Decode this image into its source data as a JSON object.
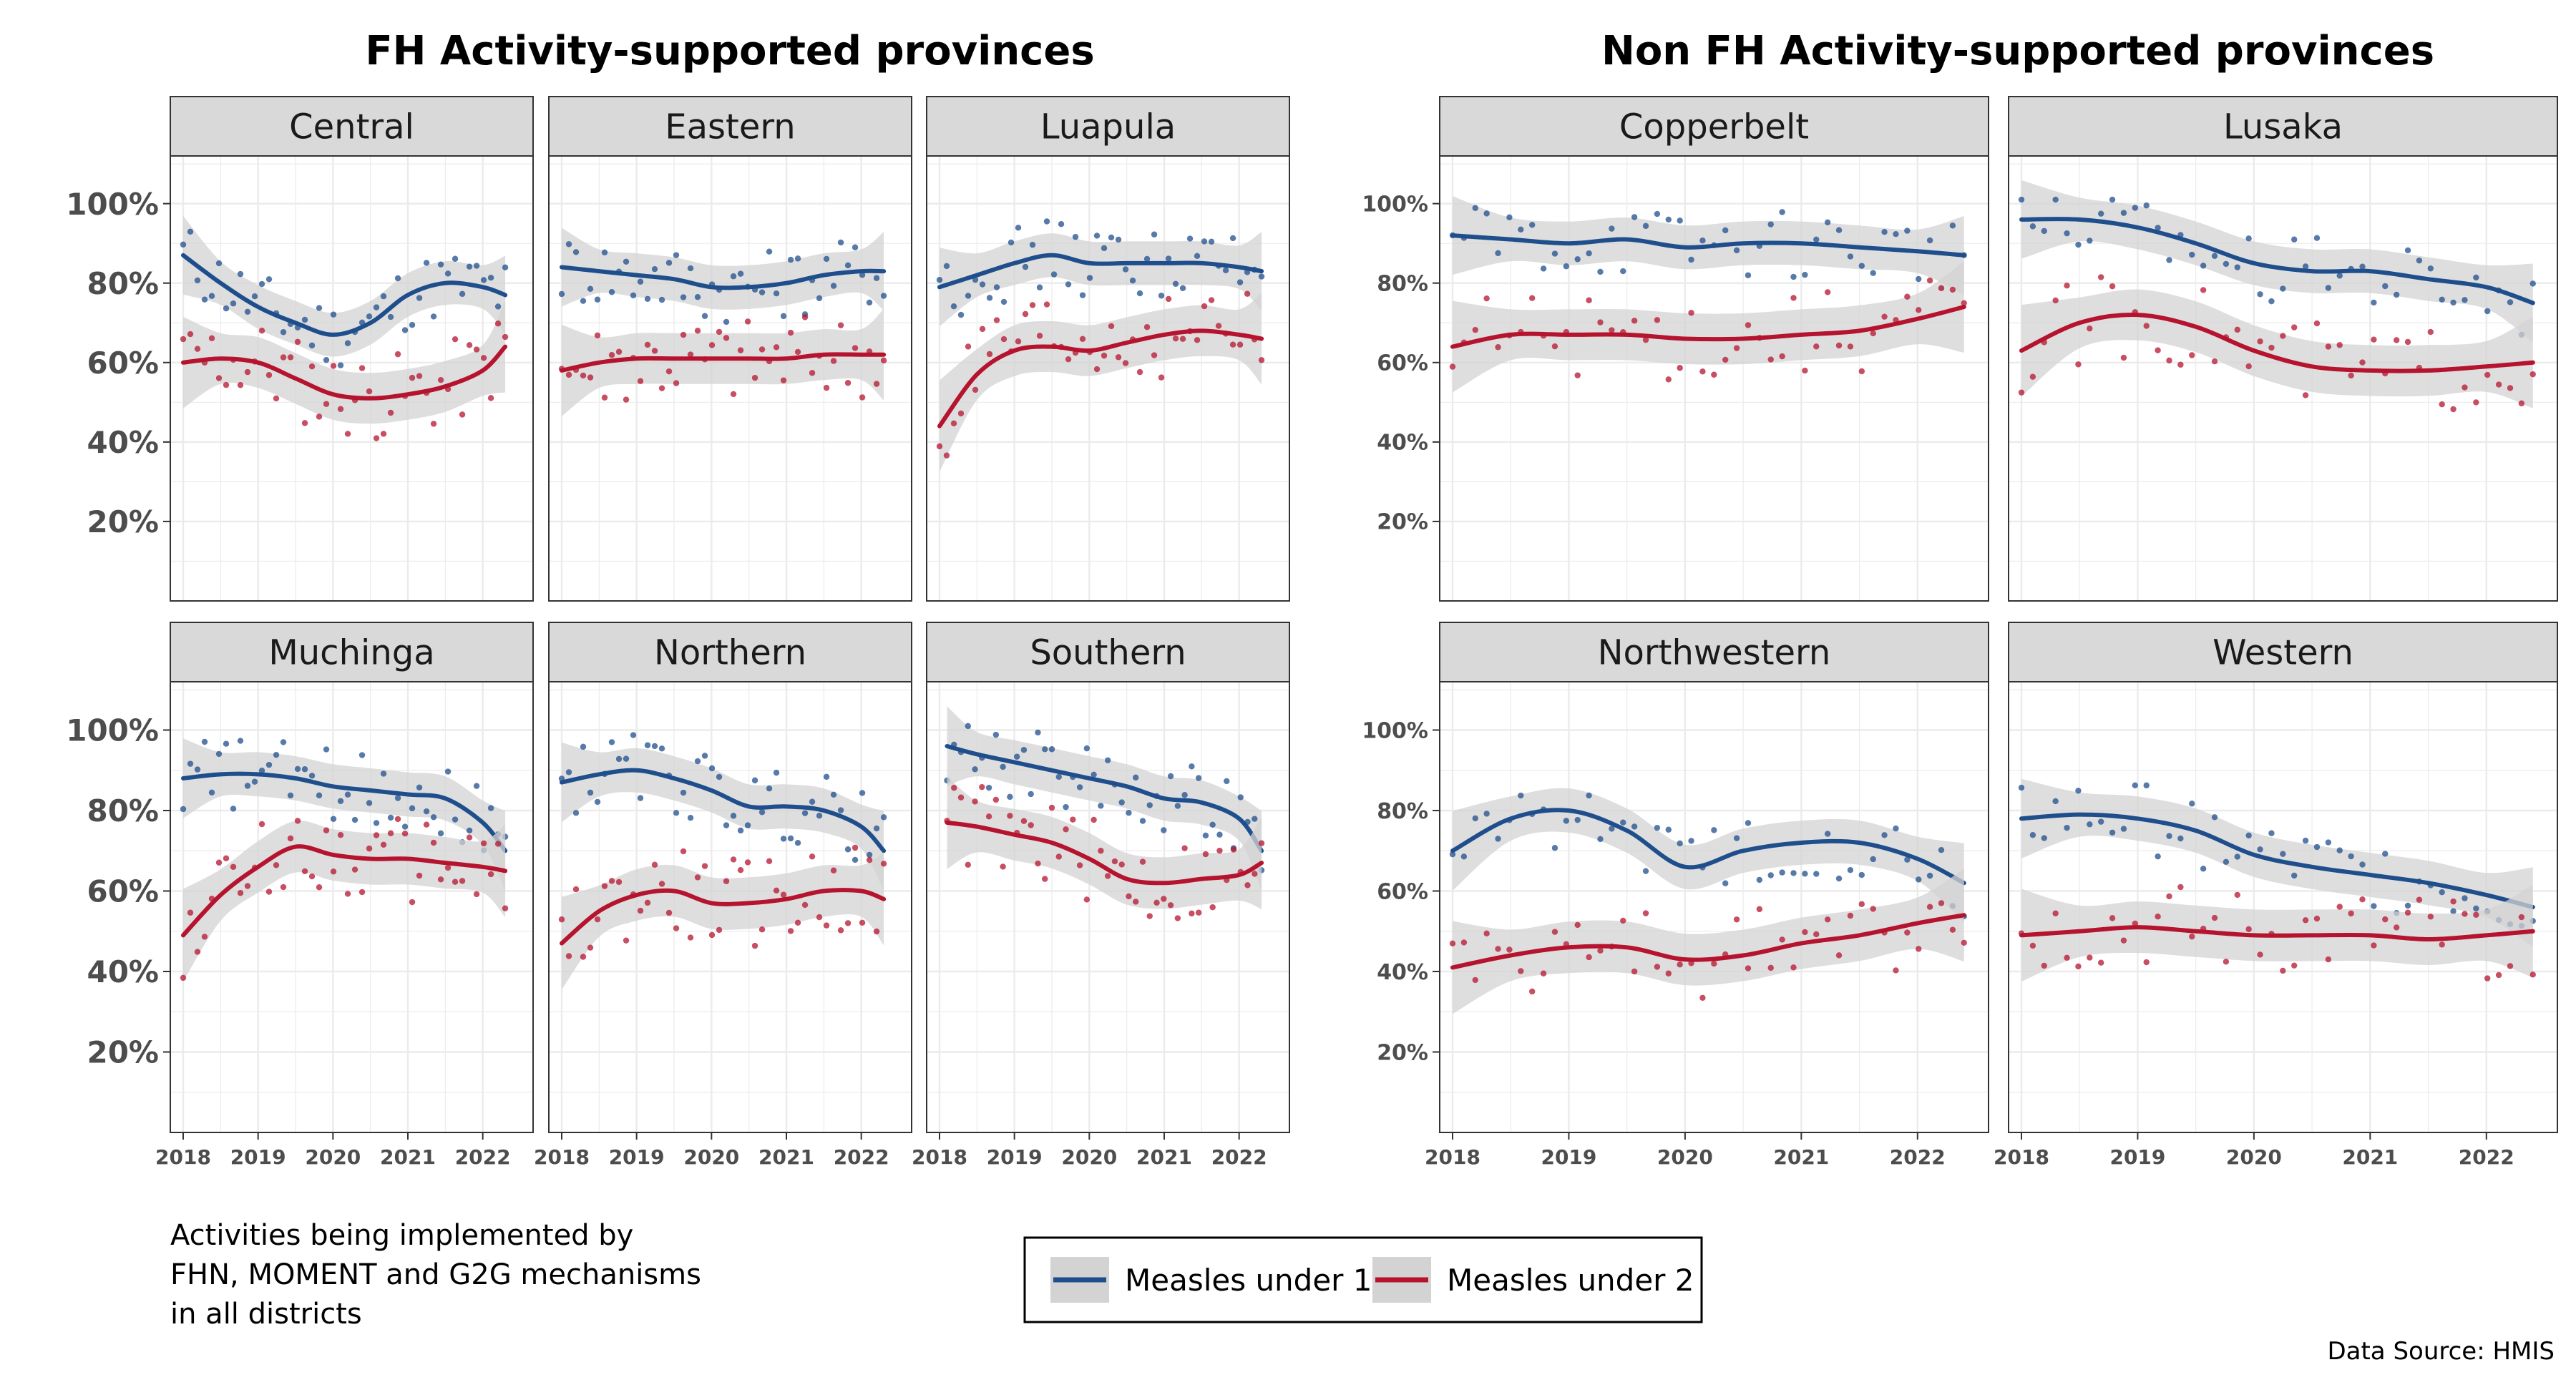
{
  "group_titles": [
    "FH Activity-supported provinces",
    "Non FH Activity-supported provinces"
  ],
  "note_lines": [
    "Activities being implemented by",
    "FHN, MOMENT and G2G mechanisms",
    "in all districts"
  ],
  "source": "Data Source: HMIS",
  "legend": {
    "items": [
      {
        "label": "Measles under 1",
        "color": "#1f4e8c"
      },
      {
        "label": "Measles under 2",
        "color": "#b5132e"
      }
    ]
  },
  "chart_data": {
    "type": "line",
    "facet": true,
    "series_names": [
      "Measles under 1",
      "Measles under 2"
    ],
    "colors": {
      "Measles under 1": "#1f4e8c",
      "Measles under 2": "#b5132e",
      "band": "#d3d3d3"
    },
    "x_ticks": [
      "2018",
      "2019",
      "2020",
      "2021",
      "2022"
    ],
    "y_ticks": [
      "20%",
      "40%",
      "60%",
      "80%",
      "100%"
    ],
    "xlim": [
      2018,
      2022.5
    ],
    "ylim": [
      0,
      112
    ],
    "grid": true,
    "legend_position": "bottom",
    "panels": [
      {
        "name": "Central",
        "group": "FH Activity-supported provinces",
        "x": [
          2018.0,
          2018.5,
          2019.0,
          2019.5,
          2020.0,
          2020.5,
          2021.0,
          2021.5,
          2022.0,
          2022.3
        ],
        "series": [
          {
            "name": "Measles under 1",
            "values": [
              87,
              80,
              74,
              70,
              67,
              70,
              77,
              80,
              79,
              77
            ]
          },
          {
            "name": "Measles under 2",
            "values": [
              60,
              61,
              60,
              56,
              52,
              51,
              52,
              54,
              58,
              64
            ]
          }
        ]
      },
      {
        "name": "Eastern",
        "group": "FH Activity-supported provinces",
        "x": [
          2018.0,
          2018.5,
          2019.0,
          2019.5,
          2020.0,
          2020.5,
          2021.0,
          2021.5,
          2022.0,
          2022.3
        ],
        "series": [
          {
            "name": "Measles under 1",
            "values": [
              84,
              83,
              82,
              81,
              79,
              79,
              80,
              82,
              83,
              83
            ]
          },
          {
            "name": "Measles under 2",
            "values": [
              58,
              60,
              61,
              61,
              61,
              61,
              61,
              62,
              62,
              62
            ]
          }
        ]
      },
      {
        "name": "Luapula",
        "group": "FH Activity-supported provinces",
        "x": [
          2018.0,
          2018.5,
          2019.0,
          2019.5,
          2020.0,
          2020.5,
          2021.0,
          2021.5,
          2022.0,
          2022.3
        ],
        "series": [
          {
            "name": "Measles under 1",
            "values": [
              79,
              82,
              85,
              87,
              85,
              85,
              85,
              85,
              84,
              83
            ]
          },
          {
            "name": "Measles under 2",
            "values": [
              44,
              57,
              63,
              64,
              63,
              65,
              67,
              68,
              67,
              66
            ]
          }
        ]
      },
      {
        "name": "Muchinga",
        "group": "FH Activity-supported provinces",
        "x": [
          2018.0,
          2018.5,
          2019.0,
          2019.5,
          2020.0,
          2020.5,
          2021.0,
          2021.5,
          2022.0,
          2022.3
        ],
        "series": [
          {
            "name": "Measles under 1",
            "values": [
              88,
              89,
              89,
              88,
              86,
              85,
              84,
              83,
              77,
              70
            ]
          },
          {
            "name": "Measles under 2",
            "values": [
              49,
              59,
              66,
              71,
              69,
              68,
              68,
              67,
              66,
              65
            ]
          }
        ]
      },
      {
        "name": "Northern",
        "group": "FH Activity-supported provinces",
        "x": [
          2018.0,
          2018.5,
          2019.0,
          2019.5,
          2020.0,
          2020.5,
          2021.0,
          2021.5,
          2022.0,
          2022.3
        ],
        "series": [
          {
            "name": "Measles under 1",
            "values": [
              87,
              89,
              90,
              88,
              85,
              81,
              81,
              80,
              76,
              70
            ]
          },
          {
            "name": "Measles under 2",
            "values": [
              47,
              55,
              59,
              60,
              57,
              57,
              58,
              60,
              60,
              58
            ]
          }
        ]
      },
      {
        "name": "Southern",
        "group": "FH Activity-supported provinces",
        "x": [
          2018.1,
          2018.5,
          2019.0,
          2019.5,
          2020.0,
          2020.5,
          2021.0,
          2021.5,
          2022.0,
          2022.3
        ],
        "series": [
          {
            "name": "Measles under 1",
            "values": [
              96,
              94,
              92,
              90,
              88,
              86,
              83,
              82,
              78,
              70
            ]
          },
          {
            "name": "Measles under 2",
            "values": [
              77,
              76,
              74,
              72,
              68,
              63,
              62,
              63,
              64,
              67
            ]
          }
        ]
      },
      {
        "name": "Copperbelt",
        "group": "Non FH Activity-supported provinces",
        "x": [
          2018.0,
          2018.5,
          2019.0,
          2019.5,
          2020.0,
          2020.5,
          2021.0,
          2021.5,
          2022.0,
          2022.4
        ],
        "series": [
          {
            "name": "Measles under 1",
            "values": [
              92,
              91,
              90,
              91,
              89,
              90,
              90,
              89,
              88,
              87
            ]
          },
          {
            "name": "Measles under 2",
            "values": [
              64,
              67,
              67,
              67,
              66,
              66,
              67,
              68,
              71,
              74
            ]
          }
        ]
      },
      {
        "name": "Lusaka",
        "group": "Non FH Activity-supported provinces",
        "x": [
          2018.0,
          2018.5,
          2019.0,
          2019.5,
          2020.0,
          2020.5,
          2021.0,
          2021.5,
          2022.0,
          2022.4
        ],
        "series": [
          {
            "name": "Measles under 1",
            "values": [
              96,
              96,
              94,
              90,
              85,
              83,
              83,
              81,
              79,
              75
            ]
          },
          {
            "name": "Measles under 2",
            "values": [
              63,
              70,
              72,
              69,
              63,
              59,
              58,
              58,
              59,
              60
            ]
          }
        ]
      },
      {
        "name": "Northwestern",
        "group": "Non FH Activity-supported provinces",
        "x": [
          2018.0,
          2018.5,
          2019.0,
          2019.5,
          2020.0,
          2020.5,
          2021.0,
          2021.5,
          2022.0,
          2022.4
        ],
        "series": [
          {
            "name": "Measles under 1",
            "values": [
              70,
              78,
              80,
              75,
              66,
              70,
              72,
              72,
              68,
              62
            ]
          },
          {
            "name": "Measles under 2",
            "values": [
              41,
              44,
              46,
              46,
              43,
              44,
              47,
              49,
              52,
              54
            ]
          }
        ]
      },
      {
        "name": "Western",
        "group": "Non FH Activity-supported provinces",
        "x": [
          2018.0,
          2018.5,
          2019.0,
          2019.5,
          2020.0,
          2020.5,
          2021.0,
          2021.5,
          2022.0,
          2022.4
        ],
        "series": [
          {
            "name": "Measles under 1",
            "values": [
              78,
              79,
              78,
              75,
              69,
              66,
              64,
              62,
              59,
              56
            ]
          },
          {
            "name": "Measles under 2",
            "values": [
              49,
              50,
              51,
              50,
              49,
              49,
              49,
              48,
              49,
              50
            ]
          }
        ]
      }
    ]
  }
}
